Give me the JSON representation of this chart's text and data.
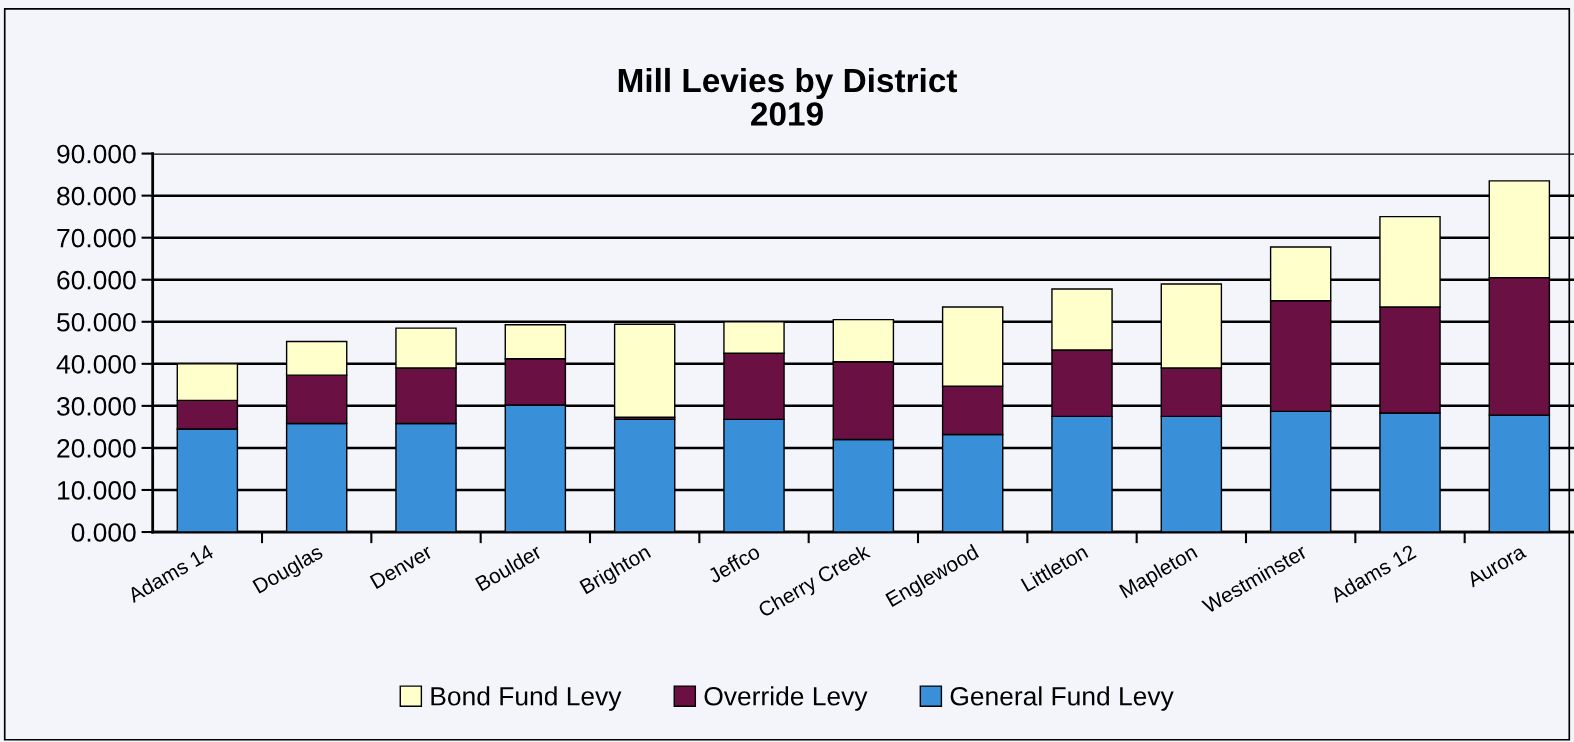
{
  "chart_data": {
    "type": "bar",
    "stacked": true,
    "title": "Mill Levies by District\n2019",
    "categories": [
      "Adams 14",
      "Douglas",
      "Denver",
      "Boulder",
      "Brighton",
      "Jeffco",
      "Cherry Creek",
      "Englewood",
      "Littleton",
      "Mapleton",
      "Westminster",
      "Adams 12",
      "Aurora"
    ],
    "series": [
      {
        "name": "General Fund Levy",
        "color": "#3a8fd9",
        "values": [
          24.5,
          25.8,
          25.8,
          30.2,
          26.8,
          26.8,
          22.0,
          23.2,
          27.5,
          27.5,
          28.7,
          28.3,
          27.8
        ]
      },
      {
        "name": "Override Levy",
        "color": "#6b1042",
        "values": [
          6.8,
          11.5,
          13.2,
          11.0,
          0.5,
          15.7,
          18.5,
          11.5,
          15.8,
          11.5,
          26.3,
          25.2,
          32.7
        ]
      },
      {
        "name": "Bond Fund Levy",
        "color": "#ffffcc",
        "values": [
          8.7,
          8.0,
          9.5,
          8.1,
          22.1,
          7.5,
          10.0,
          18.8,
          14.5,
          20.0,
          12.8,
          21.5,
          23.0
        ]
      }
    ],
    "ylim": [
      0,
      90
    ],
    "yticks": [
      {
        "value": 0,
        "label": "0.000"
      },
      {
        "value": 10,
        "label": "10.000"
      },
      {
        "value": 20,
        "label": "20.000"
      },
      {
        "value": 30,
        "label": "30.000"
      },
      {
        "value": 40,
        "label": "40.000"
      },
      {
        "value": 50,
        "label": "50.000"
      },
      {
        "value": 60,
        "label": "60.000"
      },
      {
        "value": 70,
        "label": "70.000"
      },
      {
        "value": 80,
        "label": "80.000"
      },
      {
        "value": 90,
        "label": "90.000"
      }
    ],
    "grid": "y",
    "legend": "bottom"
  }
}
